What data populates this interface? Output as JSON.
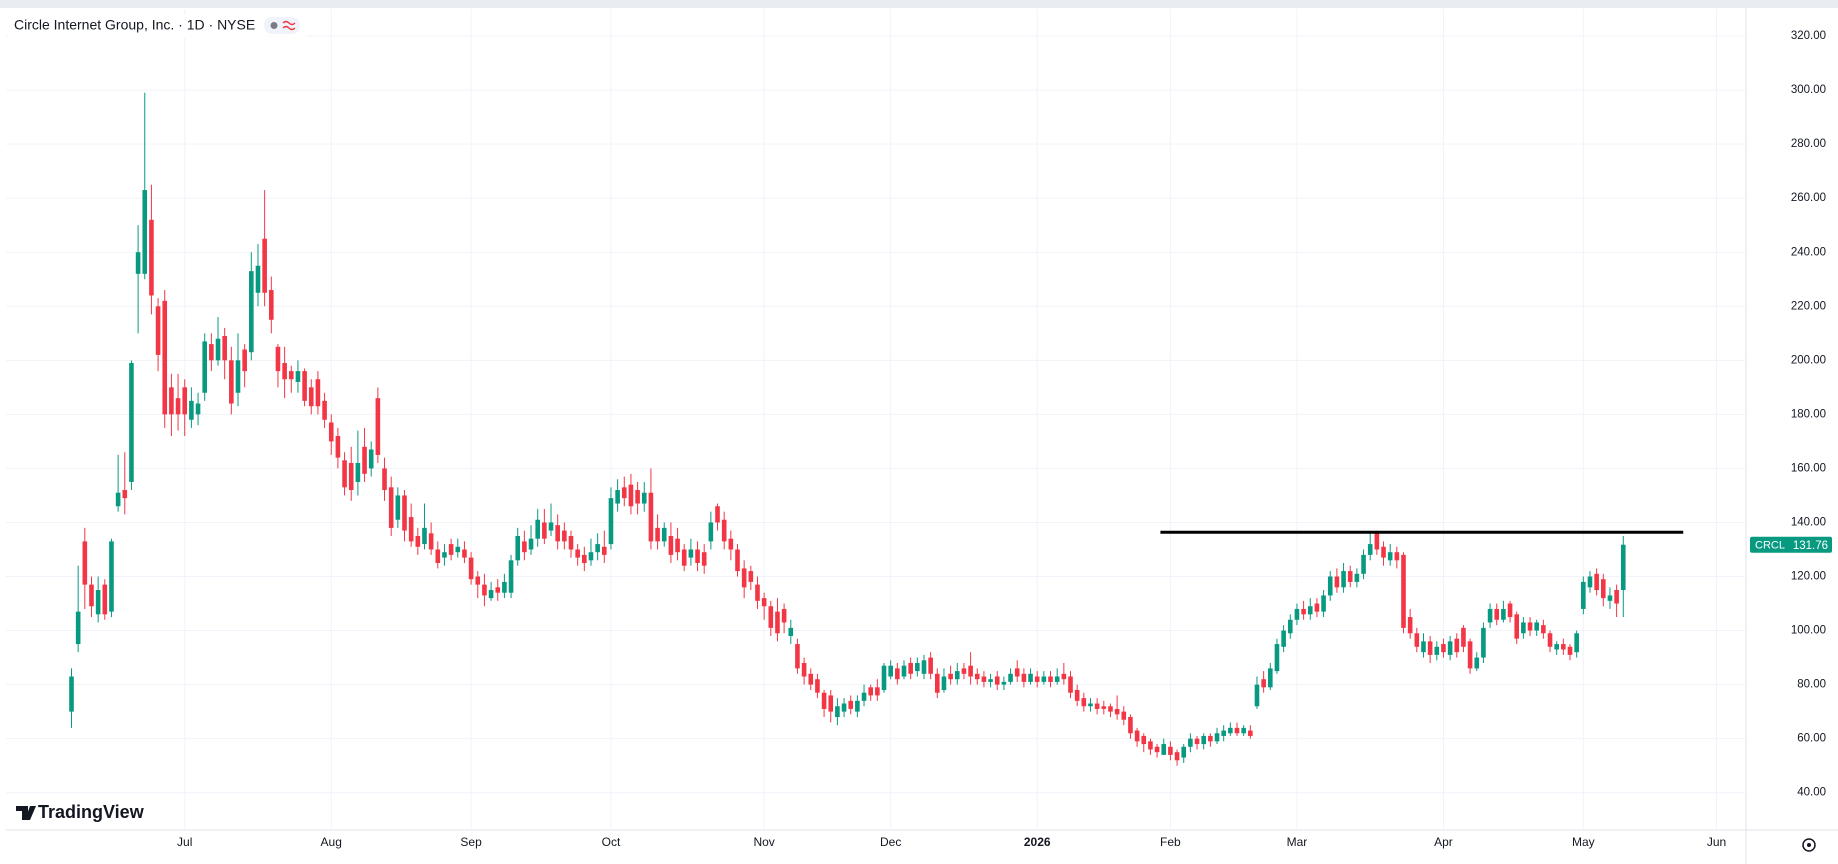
{
  "chart_data": {
    "type": "candlestick",
    "title": "Circle Internet Group, Inc. · 1D · NYSE",
    "ticker": "CRCL",
    "logo": "TradingView",
    "up_color": "#089981",
    "down_color": "#f23645",
    "grid": true,
    "ylim": [
      26.2,
      330
    ],
    "yticks": [
      {
        "value": 40,
        "label": "40.00"
      },
      {
        "value": 60,
        "label": "60.00"
      },
      {
        "value": 80,
        "label": "80.00"
      },
      {
        "value": 100,
        "label": "100.00"
      },
      {
        "value": 120,
        "label": "120.00"
      },
      {
        "value": 140,
        "label": "140.00"
      },
      {
        "value": 160,
        "label": "160.00"
      },
      {
        "value": 180,
        "label": "180.00"
      },
      {
        "value": 200,
        "label": "200.00"
      },
      {
        "value": 220,
        "label": "220.00"
      },
      {
        "value": 240,
        "label": "240.00"
      },
      {
        "value": 260,
        "label": "260.00"
      },
      {
        "value": 280,
        "label": "280.00"
      },
      {
        "value": 300,
        "label": "300.00"
      },
      {
        "value": 320,
        "label": "320.00"
      }
    ],
    "level_line": {
      "value": 136.4,
      "x_from": 163.5,
      "x_to": 242
    },
    "categories": [
      null,
      null,
      null,
      null,
      null,
      null,
      null,
      null,
      null,
      null,
      null,
      null,
      null,
      null,
      null,
      null,
      null,
      "Jul",
      null,
      null,
      null,
      null,
      null,
      null,
      null,
      null,
      null,
      null,
      null,
      null,
      null,
      null,
      null,
      null,
      null,
      null,
      null,
      null,
      null,
      "Aug",
      null,
      null,
      null,
      null,
      null,
      null,
      null,
      null,
      null,
      null,
      null,
      null,
      null,
      null,
      null,
      null,
      null,
      null,
      null,
      null,
      "Sep",
      null,
      null,
      null,
      null,
      null,
      null,
      null,
      null,
      null,
      null,
      null,
      null,
      null,
      null,
      null,
      null,
      null,
      null,
      null,
      null,
      "Oct",
      null,
      null,
      null,
      null,
      null,
      null,
      null,
      null,
      null,
      null,
      null,
      null,
      null,
      null,
      null,
      null,
      null,
      null,
      null,
      null,
      null,
      null,
      "Nov",
      null,
      null,
      null,
      null,
      null,
      null,
      null,
      null,
      null,
      null,
      null,
      null,
      null,
      null,
      null,
      null,
      null,
      null,
      "Dec",
      null,
      null,
      null,
      null,
      null,
      null,
      null,
      null,
      null,
      null,
      null,
      null,
      null,
      null,
      null,
      null,
      null,
      null,
      null,
      null,
      null,
      "2026",
      null,
      null,
      null,
      null,
      null,
      null,
      null,
      null,
      null,
      null,
      null,
      null,
      null,
      null,
      null,
      null,
      null,
      null,
      null,
      "Feb",
      null,
      null,
      null,
      null,
      null,
      null,
      null,
      null,
      null,
      null,
      null,
      null,
      null,
      null,
      null,
      null,
      null,
      null,
      "Mar",
      null,
      null,
      null,
      null,
      null,
      null,
      null,
      null,
      null,
      null,
      null,
      null,
      null,
      null,
      null,
      null,
      null,
      null,
      null,
      null,
      null,
      "Apr",
      null,
      null,
      null,
      null,
      null,
      null,
      null,
      null,
      null,
      null,
      null,
      null,
      null,
      null,
      null,
      null,
      null,
      null,
      null,
      null,
      "May",
      null,
      null,
      null,
      null,
      null,
      null,
      null,
      null,
      null,
      null,
      null,
      null,
      null,
      null,
      null,
      null,
      null,
      null,
      null,
      "Jun",
      null,
      null
    ],
    "open": [
      70,
      95,
      133,
      117,
      106,
      117,
      107,
      146,
      152,
      155,
      232,
      232,
      252,
      220,
      222,
      190,
      186,
      190,
      178,
      180,
      188,
      206,
      200,
      209,
      200,
      188,
      204,
      203,
      225,
      245,
      226,
      205,
      199,
      196,
      192,
      196,
      190,
      193,
      185,
      177,
      172,
      163,
      162,
      155,
      168,
      160,
      186,
      160,
      153,
      141,
      150,
      142,
      135,
      132,
      136,
      130,
      127,
      132,
      129,
      130,
      127,
      120,
      117,
      112,
      116,
      114,
      114,
      126,
      133,
      130,
      134,
      140,
      137,
      139,
      137,
      135,
      130,
      128,
      126,
      129,
      131,
      132,
      147,
      153,
      154,
      152,
      147,
      151,
      138,
      133,
      135,
      134,
      130,
      127,
      130,
      129,
      133,
      146,
      141,
      134,
      130,
      123,
      122,
      117,
      112,
      109,
      107,
      108,
      98,
      95,
      88,
      84,
      82,
      77,
      76,
      68,
      70,
      74,
      70,
      74,
      79,
      79,
      78,
      83,
      86,
      83,
      88,
      85,
      84,
      90,
      84,
      78,
      84,
      82,
      86,
      87,
      84,
      83,
      81,
      83,
      80,
      81,
      86,
      84,
      81,
      83,
      81,
      83,
      81,
      84,
      83,
      78,
      75,
      72,
      73,
      72,
      72,
      71,
      70,
      68,
      63,
      61,
      59,
      57,
      54,
      57,
      55,
      53,
      57,
      60,
      58,
      61,
      59,
      61,
      62,
      64,
      62,
      63,
      72,
      82,
      79,
      85,
      94,
      99,
      104,
      108,
      106,
      110,
      107,
      113,
      120,
      116,
      122,
      118,
      121,
      128,
      136,
      131,
      126,
      129,
      128,
      105,
      99,
      92,
      96,
      91,
      95,
      91,
      97,
      101,
      96,
      86,
      90,
      103,
      108,
      104,
      110,
      106,
      99,
      103,
      100,
      102,
      99,
      93,
      95,
      94,
      92,
      108,
      116,
      121,
      119,
      111,
      115,
      115,
      null,
      null,
      null,
      null,
      null,
      null,
      null,
      null,
      null,
      null,
      null,
      null,
      null,
      null,
      null,
      null
    ],
    "high": [
      86,
      124,
      138,
      120,
      120,
      119,
      134,
      165,
      166,
      200,
      250,
      299,
      265,
      223,
      226,
      195,
      195,
      193,
      190,
      188,
      210,
      210,
      216,
      212,
      205,
      210,
      206,
      240,
      243,
      263,
      231,
      206,
      205,
      198,
      200,
      197,
      193,
      196,
      188,
      180,
      175,
      166,
      168,
      174,
      175,
      170,
      190,
      164,
      157,
      153,
      152,
      147,
      138,
      147,
      140,
      133,
      132,
      134,
      134,
      133,
      129,
      122,
      121,
      118,
      119,
      121,
      128,
      138,
      137,
      139,
      145,
      145,
      147,
      143,
      140,
      137,
      132,
      131,
      134,
      136,
      137,
      153,
      156,
      157,
      158,
      155,
      155,
      160,
      143,
      140,
      140,
      138,
      132,
      134,
      133,
      132,
      144,
      147,
      144,
      137,
      132,
      126,
      124,
      120,
      114,
      111,
      112,
      110,
      104,
      97,
      90,
      86,
      84,
      78,
      78,
      75,
      75,
      76,
      76,
      80,
      80,
      82,
      88,
      89,
      88,
      89,
      90,
      90,
      91,
      92,
      86,
      86,
      87,
      88,
      88,
      92,
      86,
      85,
      84,
      85,
      83,
      86,
      89,
      86,
      86,
      85,
      85,
      85,
      86,
      88,
      85,
      80,
      77,
      75,
      75,
      74,
      73,
      76,
      72,
      69,
      64,
      62,
      60,
      58,
      60,
      59,
      56,
      58,
      62,
      61,
      62,
      62,
      64,
      65,
      66,
      66,
      65,
      65,
      83,
      85,
      88,
      97,
      102,
      106,
      110,
      111,
      112,
      112,
      115,
      122,
      123,
      125,
      124,
      123,
      130,
      137,
      137,
      133,
      132,
      131,
      129,
      108,
      101,
      99,
      98,
      96,
      97,
      98,
      99,
      102,
      97,
      92,
      103,
      110,
      110,
      111,
      111,
      107,
      105,
      105,
      104,
      104,
      100,
      96,
      97,
      95,
      100,
      120,
      122,
      123,
      121,
      116,
      117,
      135,
      null,
      null,
      null,
      null,
      null,
      null,
      null,
      null,
      null,
      null,
      null,
      null,
      null,
      null,
      null,
      null
    ],
    "low": [
      64,
      92,
      108,
      105,
      103,
      104,
      105,
      144,
      143,
      152,
      210,
      230,
      217,
      196,
      175,
      172,
      174,
      172,
      175,
      176,
      185,
      196,
      198,
      193,
      180,
      183,
      190,
      200,
      220,
      220,
      210,
      190,
      186,
      188,
      188,
      183,
      180,
      180,
      175,
      165,
      160,
      150,
      148,
      150,
      155,
      157,
      162,
      148,
      135,
      138,
      133,
      131,
      128,
      130,
      128,
      123,
      124,
      126,
      127,
      125,
      117,
      112,
      109,
      111,
      111,
      112,
      112,
      124,
      126,
      128,
      131,
      132,
      135,
      130,
      130,
      127,
      124,
      122,
      124,
      126,
      125,
      130,
      144,
      146,
      143,
      143,
      144,
      130,
      130,
      131,
      125,
      126,
      122,
      124,
      122,
      121,
      130,
      137,
      130,
      126,
      120,
      112,
      115,
      108,
      104,
      98,
      96,
      99,
      95,
      84,
      80,
      78,
      75,
      68,
      66,
      65,
      68,
      69,
      68,
      72,
      74,
      74,
      77,
      82,
      80,
      82,
      82,
      83,
      82,
      82,
      75,
      77,
      80,
      80,
      82,
      80,
      80,
      79,
      79,
      78,
      78,
      80,
      81,
      79,
      80,
      79,
      80,
      79,
      80,
      80,
      75,
      72,
      70,
      70,
      69,
      69,
      68,
      67,
      65,
      60,
      57,
      55,
      54,
      53,
      54,
      52,
      50,
      51,
      55,
      56,
      56,
      57,
      58,
      59,
      61,
      61,
      61,
      60,
      71,
      77,
      78,
      84,
      92,
      97,
      102,
      104,
      104,
      105,
      105,
      111,
      114,
      114,
      116,
      116,
      119,
      126,
      128,
      124,
      124,
      123,
      99,
      97,
      92,
      90,
      88,
      89,
      90,
      89,
      90,
      92,
      84,
      85,
      88,
      101,
      102,
      103,
      103,
      95,
      97,
      98,
      98,
      97,
      92,
      91,
      91,
      89,
      90,
      106,
      114,
      113,
      109,
      108,
      105,
      105,
      null,
      null,
      null,
      null,
      null,
      null,
      null,
      null,
      null,
      null,
      null,
      null,
      null,
      null,
      null,
      null
    ],
    "close": [
      83,
      107,
      117,
      109,
      115,
      106,
      133,
      151,
      149,
      199,
      240,
      263,
      224,
      202,
      180,
      180,
      180,
      180,
      185,
      184,
      207,
      200,
      208,
      200,
      184,
      200,
      196,
      233,
      235,
      225,
      215,
      196,
      193,
      193,
      196,
      185,
      183,
      183,
      178,
      170,
      164,
      153,
      152,
      162,
      158,
      167,
      165,
      152,
      138,
      150,
      137,
      133,
      131,
      138,
      130,
      125,
      129,
      128,
      131,
      127,
      119,
      117,
      113,
      115,
      114,
      118,
      126,
      135,
      129,
      134,
      141,
      134,
      140,
      133,
      133,
      130,
      127,
      125,
      129,
      132,
      128,
      149,
      152,
      149,
      146,
      147,
      151,
      133,
      133,
      138,
      128,
      129,
      124,
      130,
      125,
      124,
      140,
      140,
      133,
      130,
      122,
      116,
      118,
      111,
      109,
      101,
      99,
      103,
      101,
      86,
      83,
      80,
      77,
      71,
      70,
      72,
      73,
      71,
      74,
      77,
      76,
      76,
      87,
      87,
      82,
      87,
      84,
      88,
      89,
      84,
      77,
      83,
      82,
      85,
      84,
      83,
      82,
      81,
      82,
      80,
      81,
      84,
      83,
      81,
      84,
      81,
      83,
      81,
      83,
      82,
      77,
      74,
      72,
      73,
      71,
      71,
      70,
      69,
      67,
      62,
      59,
      58,
      56,
      55,
      58,
      54,
      52,
      57,
      60,
      58,
      61,
      59,
      62,
      63,
      64,
      62,
      64,
      61,
      80,
      79,
      86,
      95,
      100,
      104,
      108,
      106,
      109,
      107,
      113,
      120,
      116,
      122,
      118,
      121,
      128,
      132,
      130,
      127,
      129,
      126,
      101,
      99,
      94,
      96,
      91,
      94,
      92,
      96,
      92,
      94,
      86,
      90,
      101,
      108,
      104,
      108,
      105,
      97,
      103,
      100,
      103,
      99,
      94,
      95,
      93,
      91,
      99,
      118,
      120,
      115,
      112,
      113,
      110,
      131.76,
      null,
      null,
      null,
      null,
      null,
      null,
      null,
      null,
      null,
      null,
      null,
      null,
      null,
      null,
      null,
      null
    ]
  }
}
